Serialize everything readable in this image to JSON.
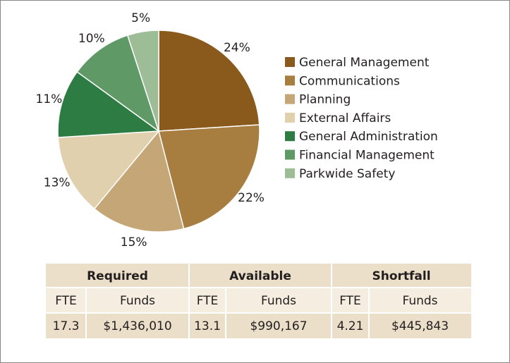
{
  "chart_data": {
    "type": "pie",
    "categories": [
      "General Management",
      "Communications",
      "Planning",
      "External Affairs",
      "General Administration",
      "Financial Management",
      "Parkwide Safety"
    ],
    "values": [
      24,
      22,
      15,
      13,
      11,
      10,
      5
    ],
    "value_labels": [
      "24%",
      "22%",
      "15%",
      "13%",
      "11%",
      "10%",
      "5%"
    ],
    "colors": [
      "#8a5a1c",
      "#a77d40",
      "#c5a676",
      "#e1d0ae",
      "#2d7c43",
      "#5f9a66",
      "#9cbd96"
    ],
    "legend": "right"
  },
  "table": {
    "groups": [
      "Required",
      "Available",
      "Shortfall"
    ],
    "subheaders": [
      "FTE",
      "Funds",
      "FTE",
      "Funds",
      "FTE",
      "Funds"
    ],
    "rows": [
      [
        "17.3",
        "$1,436,010",
        "13.1",
        "$990,167",
        "4.21",
        "$445,843"
      ]
    ]
  }
}
